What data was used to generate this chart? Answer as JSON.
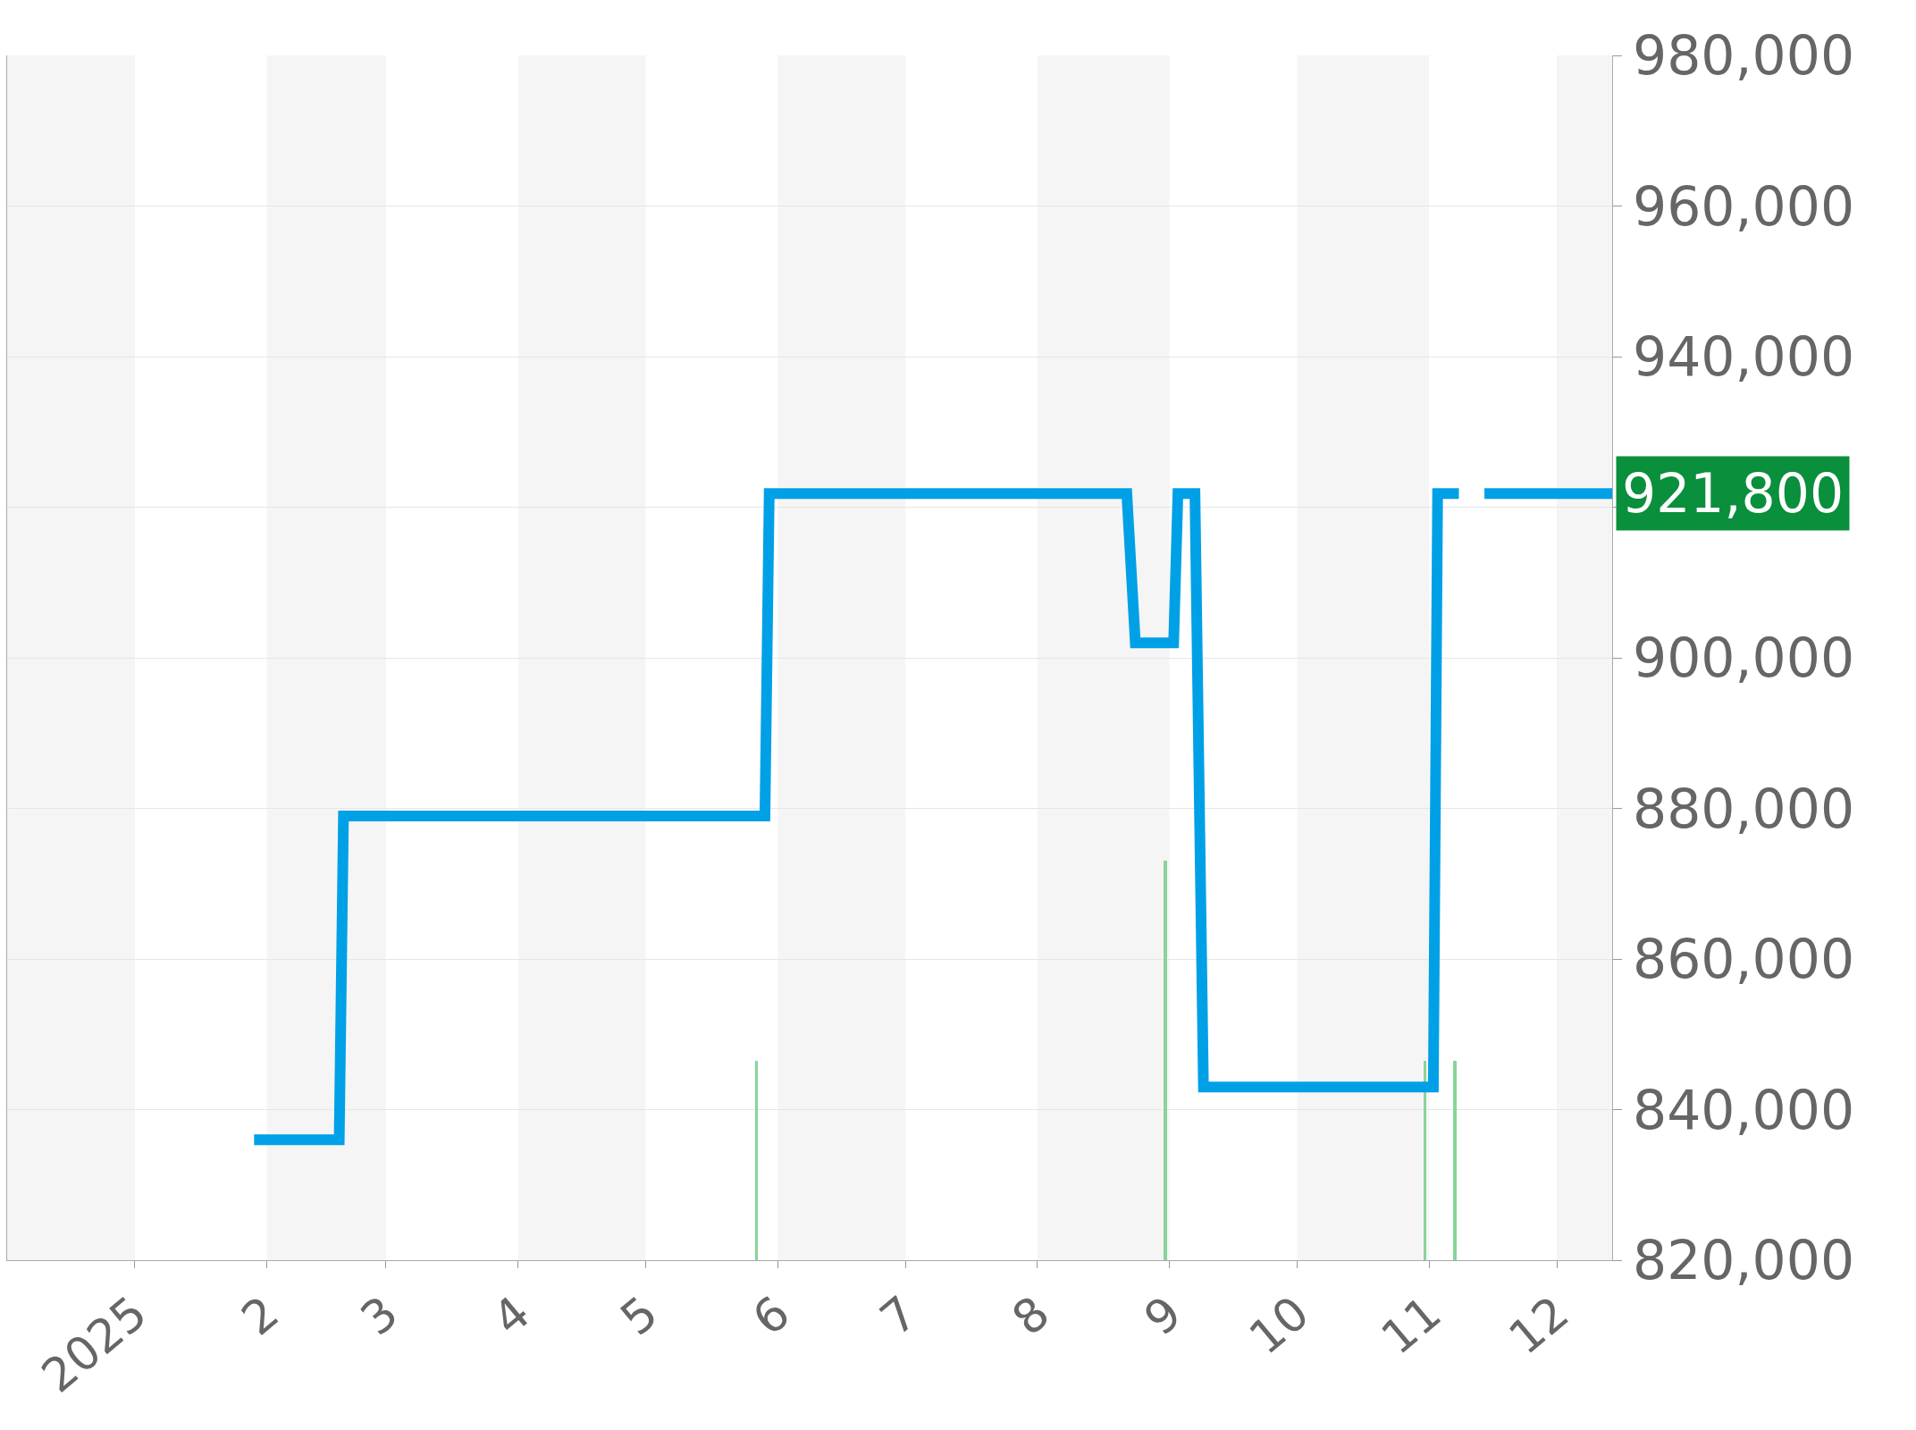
{
  "chart_data": {
    "type": "line",
    "ylim": [
      820000,
      980000
    ],
    "yticks": [
      {
        "value": 820000,
        "label": "820,000"
      },
      {
        "value": 840000,
        "label": "840,000"
      },
      {
        "value": 860000,
        "label": "860,000"
      },
      {
        "value": 880000,
        "label": "880,000"
      },
      {
        "value": 900000,
        "label": "900,000"
      },
      {
        "value": 920000,
        "label": null
      },
      {
        "value": 940000,
        "label": "940,000"
      },
      {
        "value": 960000,
        "label": "960,000"
      },
      {
        "value": 980000,
        "label": "980,000"
      }
    ],
    "xlim": [
      "2024-12-02",
      "2025-12-14"
    ],
    "xticks": [
      {
        "value": "2025-01-01",
        "label": "2025"
      },
      {
        "value": "2025-02-01",
        "label": "2"
      },
      {
        "value": "2025-03-01",
        "label": "3"
      },
      {
        "value": "2025-04-01",
        "label": "4"
      },
      {
        "value": "2025-05-01",
        "label": "5"
      },
      {
        "value": "2025-06-01",
        "label": "6"
      },
      {
        "value": "2025-07-01",
        "label": "7"
      },
      {
        "value": "2025-08-01",
        "label": "8"
      },
      {
        "value": "2025-09-01",
        "label": "9"
      },
      {
        "value": "2025-10-01",
        "label": "10"
      },
      {
        "value": "2025-11-01",
        "label": "11"
      },
      {
        "value": "2025-12-01",
        "label": "12"
      }
    ],
    "grid": "y",
    "series": [
      {
        "type": "bar",
        "color": "#88d49a",
        "x": [
          "2025-05-27",
          "2025-08-31",
          "2025-10-31",
          "2025-11-07"
        ],
        "base": [
          820000,
          820000,
          820000,
          820000
        ],
        "values": [
          26500,
          53100,
          26500,
          26500
        ]
      },
      {
        "color": "#00a0e6",
        "x": [
          "2025-01-29",
          "2025-02-18",
          "2025-02-19",
          "2025-05-29",
          "2025-05-30",
          "2025-08-22",
          "2025-08-24",
          "2025-09-02",
          "2025-09-03",
          "2025-09-07",
          "2025-09-09",
          "2025-11-02",
          "2025-11-03",
          "2025-11-08",
          "2025-11-11",
          "2025-11-14",
          "2025-12-14"
        ],
        "values": [
          836000,
          836000,
          879000,
          879000,
          921800,
          921800,
          902000,
          902000,
          921800,
          921800,
          843000,
          843000,
          921800,
          921800,
          null,
          921800,
          921800
        ]
      }
    ],
    "bands": [
      {
        "axis": "x",
        "from": "2024-12-02",
        "to": "2025-01-01",
        "color": "#f5f5f5"
      },
      {
        "axis": "x",
        "from": "2025-02-01",
        "to": "2025-03-01",
        "color": "#f5f5f5"
      },
      {
        "axis": "x",
        "from": "2025-04-01",
        "to": "2025-05-01",
        "color": "#f5f5f5"
      },
      {
        "axis": "x",
        "from": "2025-06-01",
        "to": "2025-07-01",
        "color": "#f5f5f5"
      },
      {
        "axis": "x",
        "from": "2025-08-01",
        "to": "2025-09-01",
        "color": "#f5f5f5"
      },
      {
        "axis": "x",
        "from": "2025-10-01",
        "to": "2025-11-01",
        "color": "#f5f5f5"
      },
      {
        "axis": "x",
        "from": "2025-12-01",
        "to": "2025-12-14",
        "color": "#f5f5f5"
      }
    ],
    "annotations": [
      {
        "text": "921,800",
        "x": "2025-12-14",
        "y": 921800
      }
    ]
  }
}
